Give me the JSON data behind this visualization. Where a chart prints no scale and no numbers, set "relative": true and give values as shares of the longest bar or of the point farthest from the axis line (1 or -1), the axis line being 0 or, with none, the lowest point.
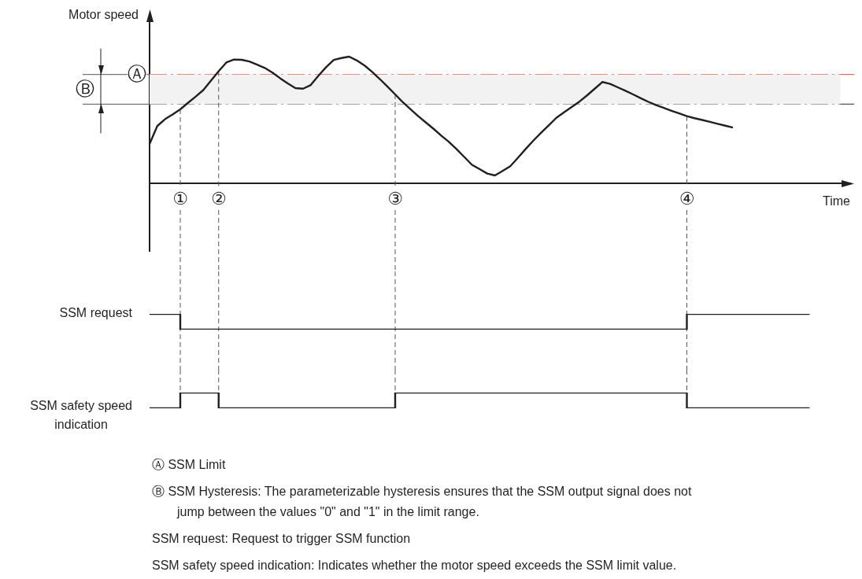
{
  "chart_data": [
    {
      "type": "line",
      "ylabel": "Motor speed",
      "xlabel": "Time",
      "relative": true,
      "categories": [
        null,
        null,
        null,
        null,
        "①",
        null,
        null,
        null,
        null,
        "②",
        null,
        null,
        null,
        null,
        null,
        null,
        null,
        null,
        null,
        null,
        null,
        null,
        null,
        null,
        null,
        null,
        null,
        null,
        null,
        null,
        null,
        null,
        "③",
        null,
        null,
        null,
        null,
        null,
        null,
        null,
        null,
        null,
        null,
        null,
        null,
        null,
        null,
        null,
        null,
        null,
        null,
        null,
        null,
        null,
        null,
        null,
        null,
        null,
        null,
        null,
        null,
        null,
        null,
        null,
        null,
        null,
        null,
        null,
        null,
        null,
        "④",
        null,
        null,
        null,
        null,
        null,
        null,
        null,
        null,
        null,
        null,
        null,
        null,
        null,
        null,
        null,
        null,
        null,
        null,
        null,
        null
      ],
      "series": [
        {
          "color": "#231f20",
          "values": [
            0.311,
            0.452,
            0.506,
            0.543,
            0.584,
            0.635,
            0.684,
            0.736,
            0.811,
            0.885,
            0.954,
            0.977,
            0.975,
            0.962,
            0.937,
            0.911,
            0.874,
            0.83,
            0.789,
            0.752,
            0.747,
            0.776,
            0.849,
            0.917,
            0.974,
            0.989,
            1,
            0.97,
            0.93,
            0.88,
            0.823,
            0.763,
            0.702,
            0.64,
            0.585,
            0.53,
            0.48,
            0.43,
            0.377,
            0.327,
            0.269,
            0.208,
            0.146,
            0.112,
            0.077,
            0.062,
            0.098,
            0.135,
            0.202,
            0.271,
            0.337,
            0.398,
            0.457,
            0.517,
            0.56,
            0.602,
            0.645,
            0.694,
            0.747,
            0.8,
            0.785,
            0.758,
            0.731,
            0.702,
            0.672,
            0.643,
            0.617,
            0.595,
            0.573,
            0.552,
            0.53,
            0.514,
            0.5,
            0.485,
            0.47,
            0.455,
            0.44,
            null,
            null,
            null,
            null,
            null,
            null,
            null,
            null,
            null,
            null,
            null,
            null,
            null,
            null
          ]
        }
      ],
      "ref_lines": [
        {
          "axis": "y",
          "value": 0.859,
          "label": "Ⓐ",
          "color": "#e8675f",
          "line_style": "dashed"
        },
        {
          "axis": "y",
          "value": 0.625,
          "label": null,
          "color": "#555555",
          "line_style": "dashed"
        },
        {
          "axis": "x",
          "value": "①",
          "color": "#555555",
          "line_style": "dashed"
        },
        {
          "axis": "x",
          "value": "②",
          "color": "#555555",
          "line_style": "dashed"
        },
        {
          "axis": "x",
          "value": "③",
          "color": "#555555",
          "line_style": "dashed"
        },
        {
          "axis": "x",
          "value": "④",
          "color": "#555555",
          "line_style": "dashed"
        }
      ],
      "bands": [
        {
          "axis": "y",
          "from": 0.625,
          "to": 0.859,
          "label": "Ⓑ"
        }
      ]
    },
    {
      "type": "step",
      "ylabel": "SSM request",
      "relative": true,
      "tick_labels": false,
      "categories": [
        null,
        null,
        null,
        null,
        "①",
        null,
        null,
        null,
        null,
        "②",
        null,
        null,
        null,
        null,
        null,
        null,
        null,
        null,
        null,
        null,
        null,
        null,
        null,
        null,
        null,
        null,
        null,
        null,
        null,
        null,
        null,
        null,
        "③",
        null,
        null,
        null,
        null,
        null,
        null,
        null,
        null,
        null,
        null,
        null,
        null,
        null,
        null,
        null,
        null,
        null,
        null,
        null,
        null,
        null,
        null,
        null,
        null,
        null,
        null,
        null,
        null,
        null,
        null,
        null,
        null,
        null,
        null,
        null,
        null,
        null,
        "④",
        null,
        null,
        null,
        null,
        null,
        null,
        null,
        null,
        null,
        null,
        null,
        null,
        null,
        null,
        null,
        null,
        null,
        null,
        null,
        null
      ],
      "series": [
        {
          "color": "#231f20",
          "values": [
            1,
            1,
            1,
            1,
            0,
            0,
            0,
            0,
            0,
            0,
            0,
            0,
            0,
            0,
            0,
            0,
            0,
            0,
            0,
            0,
            0,
            0,
            0,
            0,
            0,
            0,
            0,
            0,
            0,
            0,
            0,
            0,
            0,
            0,
            0,
            0,
            0,
            0,
            0,
            0,
            0,
            0,
            0,
            0,
            0,
            0,
            0,
            0,
            0,
            0,
            0,
            0,
            0,
            0,
            0,
            0,
            0,
            0,
            0,
            0,
            0,
            0,
            0,
            0,
            0,
            0,
            0,
            0,
            0,
            0,
            1,
            1,
            1,
            1,
            1,
            1,
            1,
            1,
            1,
            1,
            1,
            1,
            1,
            1,
            1,
            1,
            1,
            null,
            null,
            null,
            null
          ]
        }
      ],
      "ref_lines": [
        {
          "axis": "x",
          "value": "①",
          "color": "#555555",
          "line_style": "dashed"
        },
        {
          "axis": "x",
          "value": "②",
          "color": "#555555",
          "line_style": "dashed"
        },
        {
          "axis": "x",
          "value": "③",
          "color": "#555555",
          "line_style": "dashed"
        },
        {
          "axis": "x",
          "value": "④",
          "color": "#555555",
          "line_style": "dashed"
        }
      ]
    },
    {
      "type": "step",
      "ylabel": "SSM safety speed indication",
      "relative": true,
      "tick_labels": false,
      "categories": [
        null,
        null,
        null,
        null,
        "①",
        null,
        null,
        null,
        null,
        "②",
        null,
        null,
        null,
        null,
        null,
        null,
        null,
        null,
        null,
        null,
        null,
        null,
        null,
        null,
        null,
        null,
        null,
        null,
        null,
        null,
        null,
        null,
        "③",
        null,
        null,
        null,
        null,
        null,
        null,
        null,
        null,
        null,
        null,
        null,
        null,
        null,
        null,
        null,
        null,
        null,
        null,
        null,
        null,
        null,
        null,
        null,
        null,
        null,
        null,
        null,
        null,
        null,
        null,
        null,
        null,
        null,
        null,
        null,
        null,
        null,
        "④",
        null,
        null,
        null,
        null,
        null,
        null,
        null,
        null,
        null,
        null,
        null,
        null,
        null,
        null,
        null,
        null,
        null,
        null,
        null,
        null
      ],
      "series": [
        {
          "color": "#231f20",
          "values": [
            0,
            0,
            0,
            0,
            1,
            1,
            1,
            1,
            1,
            0,
            0,
            0,
            0,
            0,
            0,
            0,
            0,
            0,
            0,
            0,
            0,
            0,
            0,
            0,
            0,
            0,
            0,
            0,
            0,
            0,
            0,
            0,
            1,
            1,
            1,
            1,
            1,
            1,
            1,
            1,
            1,
            1,
            1,
            1,
            1,
            1,
            1,
            1,
            1,
            1,
            1,
            1,
            1,
            1,
            1,
            1,
            1,
            1,
            1,
            1,
            1,
            1,
            1,
            1,
            1,
            1,
            1,
            1,
            1,
            1,
            0,
            0,
            0,
            0,
            0,
            0,
            0,
            0,
            0,
            0,
            0,
            0,
            0,
            0,
            0,
            0,
            0,
            null,
            null,
            null,
            null
          ]
        }
      ],
      "ref_lines": [
        {
          "axis": "x",
          "value": "①",
          "color": "#555555",
          "line_style": "dashed"
        },
        {
          "axis": "x",
          "value": "②",
          "color": "#555555",
          "line_style": "dashed"
        },
        {
          "axis": "x",
          "value": "③",
          "color": "#555555",
          "line_style": "dashed"
        },
        {
          "axis": "x",
          "value": "④",
          "color": "#555555",
          "line_style": "dashed"
        }
      ],
      "annotations": [
        "Ⓐ SSM Limit",
        "Ⓑ SSM Hysteresis: The parameterizable hysteresis ensures that the SSM output signal does not jump between the values \"0\" and \"1\" in the limit range.",
        "SSM request: Request to trigger SSM function",
        "SSM safety speed indication: Indicates whether the motor speed exceeds the SSM limit value."
      ]
    }
  ]
}
